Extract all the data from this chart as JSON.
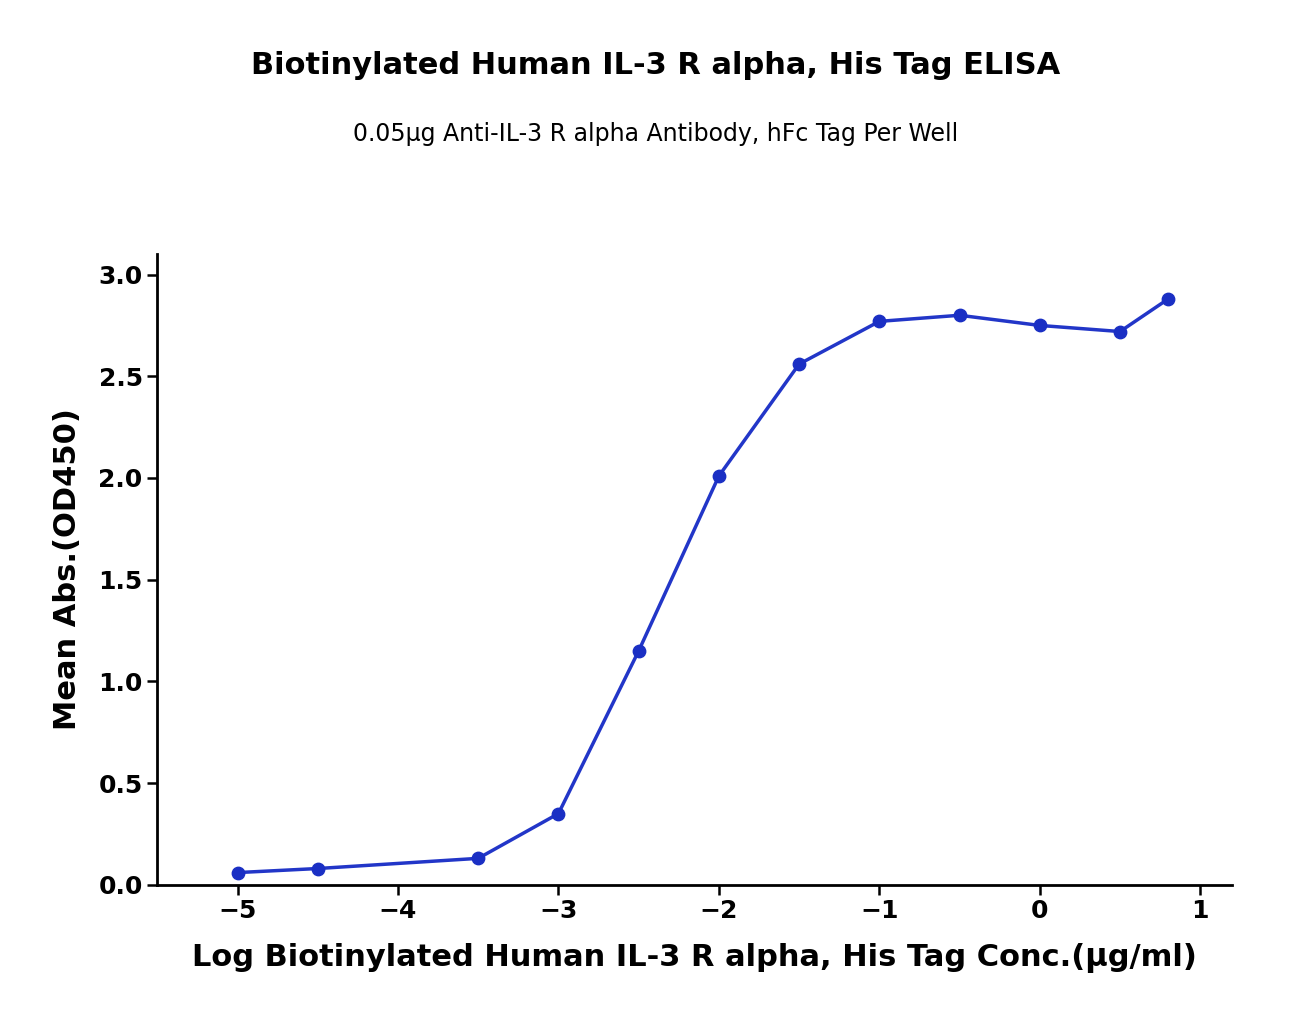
{
  "title": "Biotinylated Human IL-3 R alpha, His Tag ELISA",
  "subtitle": "0.05μg Anti-IL-3 R alpha Antibody, hFc Tag Per Well",
  "xlabel": "Log Biotinylated Human IL-3 R alpha, His Tag Conc.(μg/ml)",
  "ylabel": "Mean Abs.(OD450)",
  "x_data": [
    -5.0,
    -4.5,
    -3.5,
    -3.0,
    -2.5,
    -2.0,
    -1.5,
    -1.0,
    -0.5,
    0.0,
    0.5,
    0.8
  ],
  "y_data": [
    0.06,
    0.08,
    0.13,
    0.35,
    1.15,
    2.01,
    2.56,
    2.77,
    2.8,
    2.75,
    2.72,
    2.88
  ],
  "xlim": [
    -5.5,
    1.2
  ],
  "ylim": [
    0.0,
    3.1
  ],
  "xticks": [
    -5,
    -4,
    -3,
    -2,
    -1,
    0,
    1
  ],
  "yticks": [
    0.0,
    0.5,
    1.0,
    1.5,
    2.0,
    2.5,
    3.0
  ],
  "line_color": "#2236c8",
  "dot_color": "#1a2fc4",
  "dot_size": 80,
  "title_fontsize": 22,
  "subtitle_fontsize": 17,
  "axis_label_fontsize": 22,
  "tick_fontsize": 18,
  "background_color": "#ffffff",
  "line_width": 2.5
}
